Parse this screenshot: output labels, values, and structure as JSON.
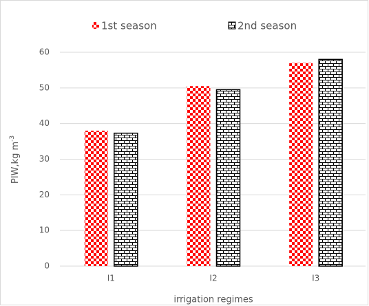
{
  "chart_data": {
    "type": "bar",
    "categories": [
      "I1",
      "I2",
      "I3"
    ],
    "series": [
      {
        "name": "1st season",
        "color": "#ff0000",
        "values": [
          38,
          50.5,
          57
        ]
      },
      {
        "name": "2nd season",
        "color": "#000000",
        "values": [
          37.3,
          49.5,
          58
        ]
      }
    ],
    "x_label": "irrigation regimes",
    "y_label": "PIW,kg m",
    "y_label_sup": "-3",
    "ylim": [
      0,
      60
    ],
    "yticks": [
      0,
      10,
      20,
      30,
      40,
      50,
      60
    ],
    "grid": true,
    "legend": "top"
  }
}
